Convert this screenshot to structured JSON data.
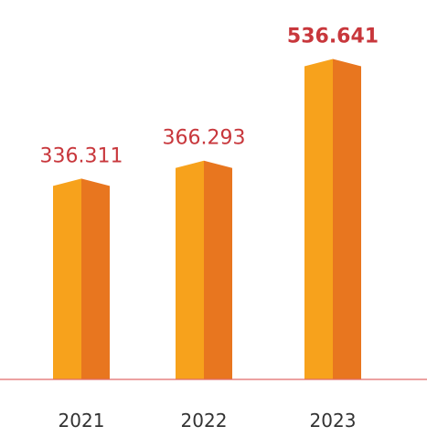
{
  "chart_data": {
    "type": "bar",
    "categories": [
      "2021",
      "2022",
      "2023"
    ],
    "values": [
      336.311,
      366.293,
      536.641
    ],
    "value_labels": [
      "336.311",
      "366.293",
      "536.641"
    ],
    "highlight_index": 2,
    "title": "",
    "xlabel": "",
    "ylabel": "",
    "ylim": [
      0,
      620
    ],
    "grid": false,
    "legend": "none",
    "colors": {
      "bar_front": "#f7a21c",
      "bar_side": "#e8761f",
      "bar_top_front": "#f39a1a",
      "bar_top_side": "#e46d1d",
      "label": "#c8373c",
      "axis_line": "#e06b6b",
      "tick_text": "#333333"
    }
  }
}
